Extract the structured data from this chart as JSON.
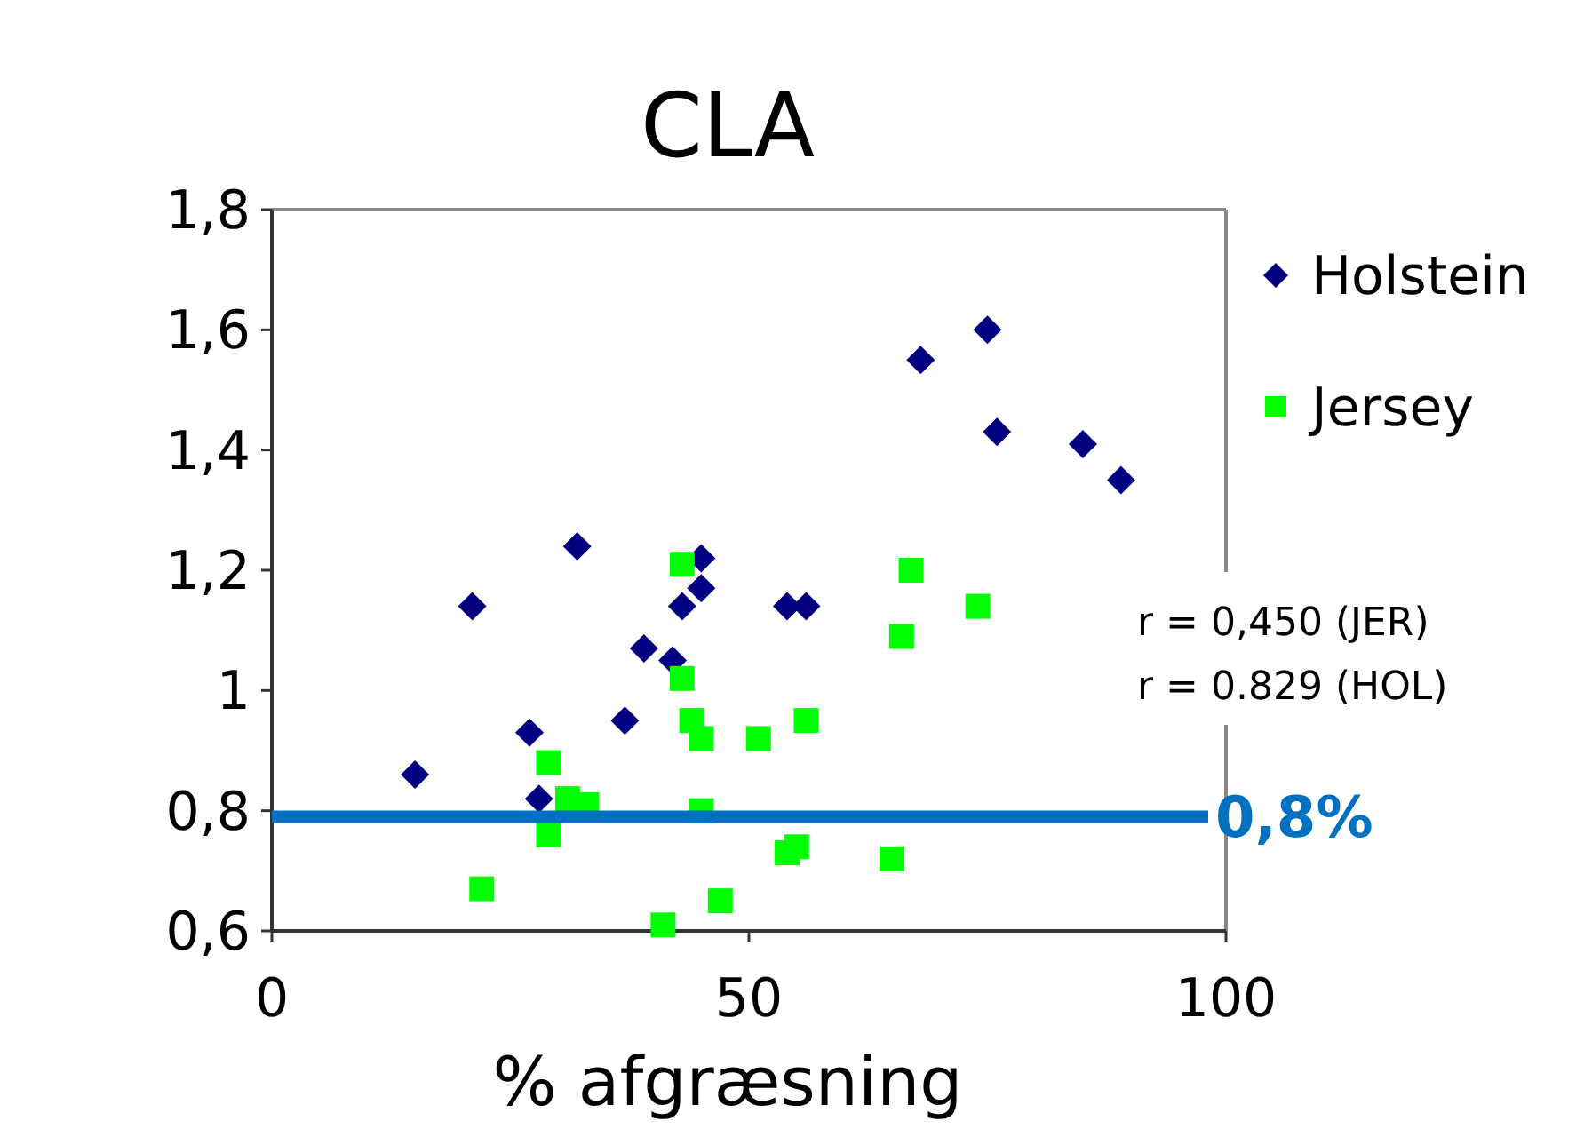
{
  "chart_data": {
    "type": "scatter",
    "title": "CLA",
    "xlabel": "% afgræsning",
    "xlim": [
      0,
      100
    ],
    "xticks": [
      0,
      50,
      100
    ],
    "ylim": [
      0.6,
      1.8
    ],
    "yticks": [
      {
        "value": 0.6,
        "label": "0,6"
      },
      {
        "value": 0.8,
        "label": "0,8"
      },
      1,
      {
        "value": 1.2,
        "label": "1,2"
      },
      {
        "value": 1.4,
        "label": "1,4"
      },
      {
        "value": 1.6,
        "label": "1,6"
      },
      {
        "value": 1.8,
        "label": "1,8"
      }
    ],
    "grid": false,
    "legend": "right",
    "series": [
      {
        "name": "Holstein",
        "color": "#000080",
        "marker": "diamond",
        "x": [
          15,
          21,
          27,
          28,
          32,
          37,
          39,
          42,
          43,
          45,
          45,
          54,
          56,
          68,
          75,
          76,
          85,
          89
        ],
        "values": [
          0.86,
          1.14,
          0.93,
          0.82,
          1.24,
          0.95,
          1.07,
          1.05,
          1.14,
          1.17,
          1.22,
          1.14,
          1.14,
          1.55,
          1.6,
          1.43,
          1.41,
          1.35
        ]
      },
      {
        "name": "Jersey",
        "color": "#00ff00",
        "marker": "square",
        "x": [
          22,
          29,
          29,
          31,
          33,
          43,
          43,
          44,
          45,
          45,
          41,
          47,
          51,
          54,
          55,
          56,
          65,
          66,
          67,
          74
        ],
        "values": [
          0.67,
          0.88,
          0.76,
          0.82,
          0.81,
          1.21,
          1.02,
          0.95,
          0.92,
          0.8,
          0.61,
          0.65,
          0.92,
          0.73,
          0.74,
          0.95,
          0.72,
          1.09,
          1.2,
          1.14
        ]
      }
    ],
    "ref_lines": [
      {
        "axis": "y",
        "value": 0.79,
        "label": "0,8%",
        "color": "#0070c0"
      }
    ],
    "annotations": [
      "r = 0,450 (JER)",
      "r = 0.829 (HOL)"
    ]
  }
}
